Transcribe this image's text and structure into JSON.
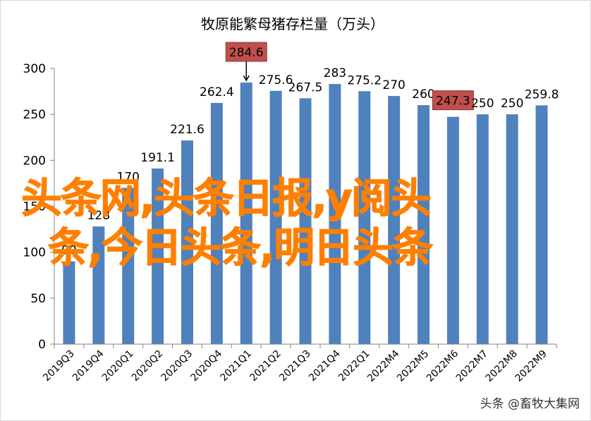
{
  "chart_data": {
    "type": "bar",
    "title": "牧原能繁母猪存栏量（万头）",
    "categories": [
      "2019Q3",
      "2019Q4",
      "2020Q1",
      "2020Q2",
      "2020Q3",
      "2020Q4",
      "2021Q1",
      "2021Q2",
      "2021Q3",
      "2021Q4",
      "2022Q1",
      "2022M4",
      "2022M5",
      "2022M6",
      "2022M7",
      "2022M8",
      "2022M9"
    ],
    "values": [
      90,
      128,
      170,
      191.1,
      221.6,
      262.4,
      284.6,
      275.6,
      267.5,
      283,
      275.2,
      270,
      260,
      247.3,
      250,
      250,
      259.8
    ],
    "value_labels": [
      "90",
      "128",
      "170",
      "191.1",
      "221.6",
      "262.4",
      "284.6",
      "275.6",
      "267.5",
      "283",
      "275.2",
      "270",
      "260",
      "247.3",
      "250",
      "250",
      "259.8"
    ],
    "highlighted_labels": [
      "284.6",
      "247.3"
    ],
    "ylim": [
      0,
      300
    ],
    "yticks": [
      "0",
      "50",
      "100",
      "150",
      "200",
      "250",
      "300"
    ],
    "xlabel": "",
    "ylabel": "",
    "grid": false,
    "legend": "none",
    "colors": {
      "bar": "#4f81bd",
      "highlight": "#c0504d",
      "axis": "#868686"
    }
  },
  "overlay": {
    "line1": "头条网,头条日报,y阅头",
    "line2": "条,今日头条,明日头条",
    "color": "#ff7f00"
  },
  "watermark": "头条 @畜牧大集网"
}
